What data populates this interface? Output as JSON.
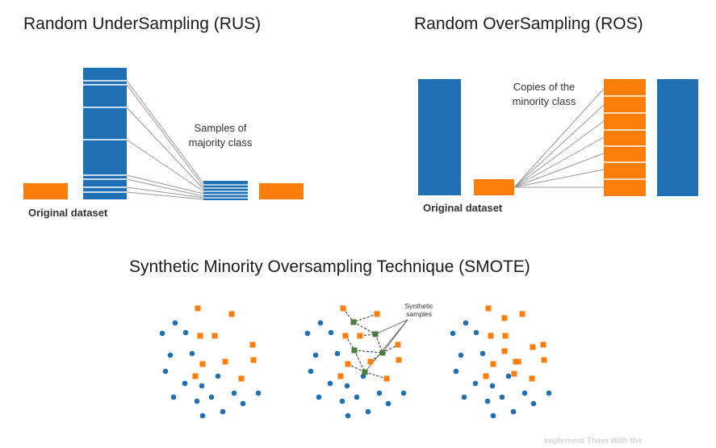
{
  "colors": {
    "blue": "#1f6fb4",
    "orange": "#fb7d0c",
    "green": "#4c7c3a",
    "line": "#9a9a9a"
  },
  "rus": {
    "title": "Random UnderSampling (RUS)",
    "dataset_label": "Original dataset",
    "note_line1": "Samples of",
    "note_line2": "majority class"
  },
  "ros": {
    "title": "Random OverSampling (ROS)",
    "dataset_label": "Original dataset",
    "note_line1": "Copies of the",
    "note_line2": "minority class"
  },
  "smote": {
    "title": "Synthetic Minority Oversampling Technique (SMOTE)",
    "note_line1": "Synthetic",
    "note_line2": "samples"
  },
  "footer_text": "Implement Them With the"
}
